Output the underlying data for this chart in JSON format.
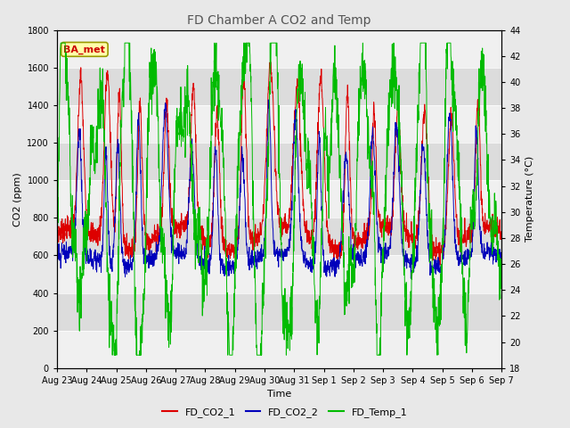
{
  "title": "FD Chamber A CO2 and Temp",
  "xlabel": "Time",
  "ylabel_left": "CO2 (ppm)",
  "ylabel_right": "Temperature (°C)",
  "ylim_left": [
    0,
    1800
  ],
  "ylim_right": [
    18,
    44
  ],
  "yticks_left": [
    0,
    200,
    400,
    600,
    800,
    1000,
    1200,
    1400,
    1600,
    1800
  ],
  "yticks_right": [
    18,
    20,
    22,
    24,
    26,
    28,
    30,
    32,
    34,
    36,
    38,
    40,
    42,
    44
  ],
  "xtick_labels": [
    "Aug 23",
    "Aug 24",
    "Aug 25",
    "Aug 26",
    "Aug 27",
    "Aug 28",
    "Aug 29",
    "Aug 30",
    "Aug 31",
    "Sep 1",
    "Sep 2",
    "Sep 3",
    "Sep 4",
    "Sep 5",
    "Sep 6",
    "Sep 7"
  ],
  "color_co2_1": "#dd0000",
  "color_co2_2": "#0000bb",
  "color_temp": "#00bb00",
  "legend_label_1": "FD_CO2_1",
  "legend_label_2": "FD_CO2_2",
  "legend_label_3": "FD_Temp_1",
  "annotation_text": "BA_met",
  "bg_color": "#e8e8e8",
  "band_light": "#f0f0f0",
  "band_dark": "#dcdcdc",
  "n_points": 2016,
  "seed": 7
}
